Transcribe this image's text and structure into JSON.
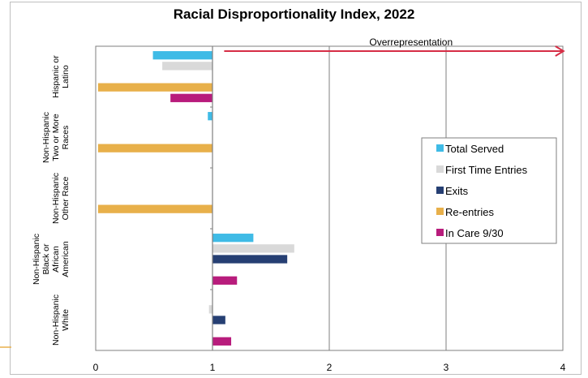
{
  "chart_data": {
    "type": "bar",
    "orientation": "horizontal",
    "title": "Racial Disproportionality Index, 2022",
    "annotation": "Overrepresentation",
    "xlim": [
      0,
      4
    ],
    "x_ticks": [
      "0",
      "1",
      "2",
      "3",
      "4"
    ],
    "reference_line": 1,
    "grid": true,
    "legend_position": "right",
    "categories": [
      "Hispanic or Latino",
      "Non-Hispanic Two or More Races",
      "Non-Hispanic Other Race",
      "Non-Hispanic Black or African American",
      "Non-Hispanic White"
    ],
    "category_label_lines": [
      [
        "Hispanic or",
        "Latino"
      ],
      [
        "Non-Hispanic",
        "Two or More",
        "Races"
      ],
      [
        "Non-Hispanic",
        "Other Race"
      ],
      [
        "Non-Hispanic",
        "Black or",
        "African",
        "American"
      ],
      [
        "Non-Hispanic",
        "White"
      ]
    ],
    "series": [
      {
        "name": "Total Served",
        "color": "#3fbbe6",
        "values": [
          0.49,
          0.96,
          null,
          1.35,
          null
        ]
      },
      {
        "name": "First Time Entries",
        "color": "#d9d9d9",
        "values": [
          0.57,
          null,
          null,
          1.7,
          0.97
        ]
      },
      {
        "name": "Exits",
        "color": "#263f73",
        "values": [
          null,
          null,
          null,
          1.64,
          1.11
        ]
      },
      {
        "name": "Re-entries",
        "color": "#e8b04a",
        "values": [
          0.02,
          0.02,
          0.02,
          null,
          null
        ]
      },
      {
        "name": "In Care 9/30",
        "color": "#b81c7c",
        "values": [
          0.64,
          null,
          null,
          1.21,
          1.16
        ]
      }
    ],
    "annotation_color": "#d62d45"
  }
}
